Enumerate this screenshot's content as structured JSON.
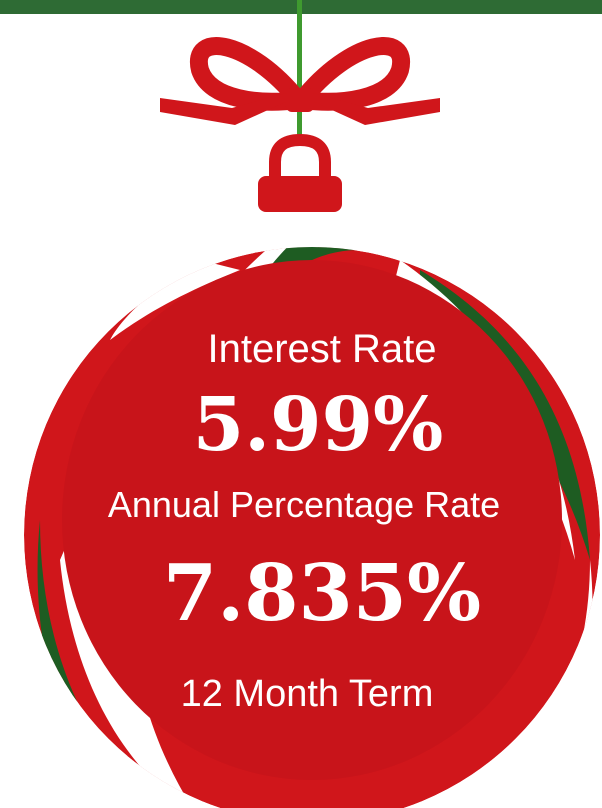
{
  "interest_rate": {
    "label": "Interest Rate",
    "value": "5.99%"
  },
  "apr": {
    "label": "Annual Percentage Rate",
    "value": "7.835%"
  },
  "term": "12 Month Term"
}
